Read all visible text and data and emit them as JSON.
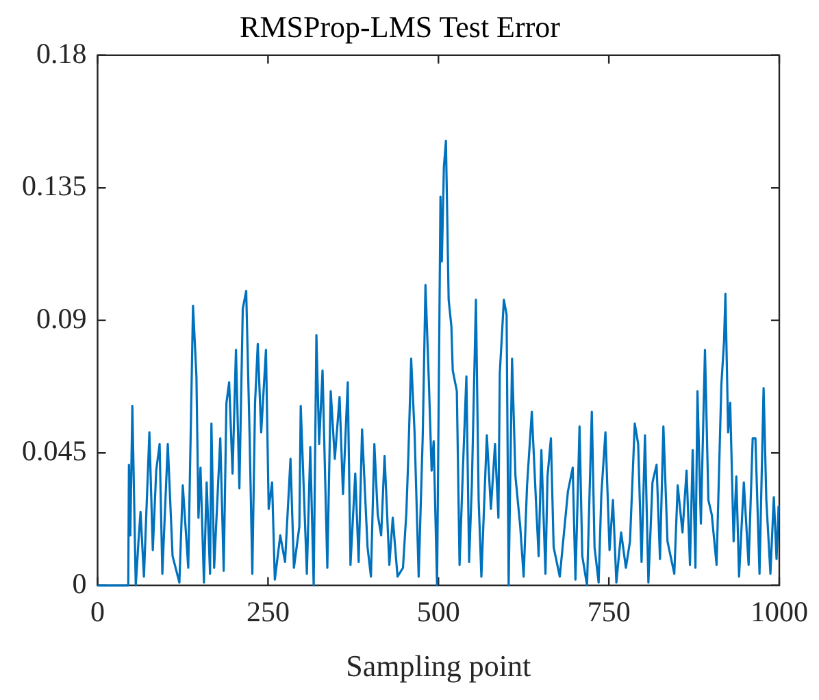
{
  "chart_data": {
    "type": "line",
    "title": "RMSProp-LMS Test Error",
    "xlabel": "Sampling point",
    "x": [
      0,
      45,
      46,
      48,
      51,
      56,
      60,
      63,
      68,
      76,
      81,
      86,
      91,
      95,
      103,
      110,
      120,
      125,
      133,
      140,
      145,
      148,
      151,
      156,
      160,
      165,
      167,
      171,
      180,
      185,
      189,
      193,
      198,
      203,
      208,
      213,
      218,
      223,
      227,
      231,
      235,
      240,
      247,
      251,
      256,
      260,
      268,
      275,
      283,
      288,
      296,
      298,
      307,
      312,
      317,
      321,
      325,
      330,
      337,
      342,
      348,
      355,
      360,
      367,
      371,
      378,
      383,
      388,
      396,
      401,
      406,
      411,
      416,
      421,
      428,
      433,
      440,
      448,
      453,
      456,
      460,
      465,
      471,
      477,
      481,
      486,
      490,
      493,
      498,
      503,
      505,
      508,
      511,
      515,
      519,
      521,
      527,
      531,
      536,
      541,
      545,
      549,
      555,
      559,
      563,
      571,
      577,
      583,
      588,
      590,
      596,
      600,
      603,
      608,
      613,
      620,
      625,
      630,
      637,
      643,
      647,
      651,
      657,
      660,
      665,
      669,
      678,
      690,
      697,
      701,
      707,
      711,
      718,
      725,
      729,
      735,
      739,
      745,
      751,
      756,
      761,
      768,
      775,
      781,
      788,
      793,
      798,
      803,
      808,
      814,
      820,
      825,
      830,
      836,
      846,
      851,
      858,
      864,
      869,
      873,
      877,
      880,
      885,
      891,
      896,
      901,
      908,
      915,
      919,
      921,
      925,
      928,
      933,
      937,
      941,
      948,
      955,
      961,
      965,
      971,
      977,
      981,
      987,
      992,
      996,
      999
    ],
    "series": [
      {
        "color": "#0072bd",
        "values": [
          0,
          0,
          0.041,
          0.017,
          0.061,
          0,
          0.015,
          0.025,
          0.003,
          0.052,
          0.012,
          0.039,
          0.048,
          0.004,
          0.048,
          0.01,
          0.001,
          0.034,
          0.006,
          0.095,
          0.071,
          0.023,
          0.04,
          0.001,
          0.035,
          0.004,
          0.055,
          0.006,
          0.05,
          0.005,
          0.062,
          0.069,
          0.038,
          0.08,
          0.033,
          0.094,
          0.1,
          0.051,
          0.004,
          0.062,
          0.082,
          0.052,
          0.08,
          0.026,
          0.035,
          0.002,
          0.017,
          0.008,
          0.043,
          0.006,
          0.02,
          0.061,
          0.004,
          0.047,
          0,
          0.085,
          0.048,
          0.073,
          0.006,
          0.066,
          0.043,
          0.064,
          0.031,
          0.069,
          0.007,
          0.038,
          0.008,
          0.053,
          0.013,
          0.003,
          0.048,
          0.024,
          0.017,
          0.044,
          0.007,
          0.023,
          0.003,
          0.006,
          0.025,
          0.045,
          0.077,
          0.052,
          0.003,
          0.051,
          0.102,
          0.069,
          0.039,
          0.049,
          0,
          0.132,
          0.11,
          0.142,
          0.151,
          0.097,
          0.088,
          0.073,
          0.066,
          0.007,
          0.04,
          0.071,
          0.008,
          0.034,
          0.097,
          0.029,
          0.003,
          0.051,
          0.026,
          0.048,
          0.023,
          0.072,
          0.097,
          0.092,
          0,
          0.077,
          0.037,
          0.02,
          0.003,
          0.034,
          0.059,
          0.029,
          0.01,
          0.046,
          0.004,
          0.037,
          0.05,
          0.013,
          0.003,
          0.032,
          0.04,
          0.002,
          0.054,
          0.01,
          0,
          0.059,
          0.013,
          0.001,
          0.031,
          0.052,
          0.012,
          0.029,
          0.001,
          0.018,
          0.006,
          0.015,
          0.055,
          0.048,
          0.008,
          0.051,
          0.001,
          0.035,
          0.041,
          0.009,
          0.054,
          0.015,
          0.004,
          0.034,
          0.018,
          0.039,
          0.007,
          0.046,
          0.006,
          0.066,
          0.021,
          0.08,
          0.029,
          0.024,
          0.007,
          0.068,
          0.083,
          0.099,
          0.052,
          0.062,
          0.015,
          0.037,
          0.003,
          0.035,
          0.007,
          0.05,
          0.05,
          0.004,
          0.067,
          0.029,
          0.004,
          0.03,
          0.009,
          0.027
        ]
      }
    ],
    "xlim": [
      0,
      1000
    ],
    "xticks": [
      0,
      250,
      500,
      750,
      1000
    ],
    "ylim": [
      0,
      0.18
    ],
    "yticks": [
      0,
      0.045,
      0.09,
      0.135,
      0.18
    ],
    "grid": false,
    "legend": false,
    "marker": "none",
    "line_style": "solid"
  }
}
